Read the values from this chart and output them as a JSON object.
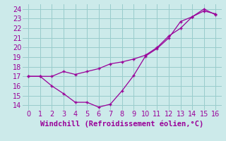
{
  "line1_x": [
    0,
    1,
    2,
    3,
    4,
    5,
    6,
    7,
    8,
    9,
    10,
    11,
    12,
    13,
    14,
    15,
    16
  ],
  "line1_y": [
    17,
    17,
    16,
    15.2,
    14.3,
    14.3,
    13.8,
    14.1,
    15.5,
    17.1,
    19.1,
    19.9,
    21.0,
    22.7,
    23.2,
    23.8,
    23.5
  ],
  "line2_x": [
    0,
    1,
    2,
    3,
    4,
    5,
    6,
    7,
    8,
    9,
    10,
    11,
    12,
    13,
    14,
    15,
    16
  ],
  "line2_y": [
    17,
    17,
    17,
    17.5,
    17.2,
    17.5,
    17.8,
    18.3,
    18.5,
    18.8,
    19.2,
    20.0,
    21.2,
    22.0,
    23.2,
    24.0,
    23.4
  ],
  "line_color": "#990099",
  "bg_color": "#cceaea",
  "grid_color": "#99cccc",
  "xlabel": "Windchill (Refroidissement éolien,°C)",
  "xlabel_color": "#990099",
  "xlabel_fontsize": 7.5,
  "tick_color": "#990099",
  "tick_fontsize": 7,
  "xlim": [
    -0.5,
    16.5
  ],
  "ylim": [
    13.5,
    24.5
  ],
  "yticks": [
    14,
    15,
    16,
    17,
    18,
    19,
    20,
    21,
    22,
    23,
    24
  ],
  "xticks": [
    0,
    1,
    2,
    3,
    4,
    5,
    6,
    7,
    8,
    9,
    10,
    11,
    12,
    13,
    14,
    15,
    16
  ]
}
